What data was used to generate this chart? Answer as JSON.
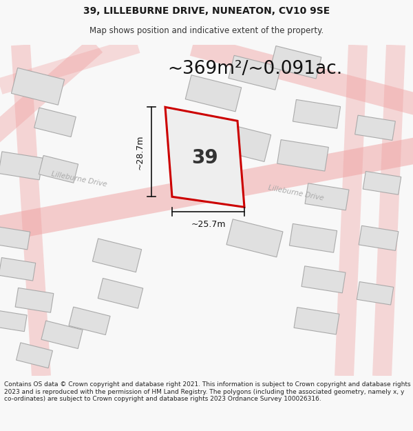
{
  "title": "39, LILLEBURNE DRIVE, NUNEATON, CV10 9SE",
  "subtitle": "Map shows position and indicative extent of the property.",
  "area_text": "~369m²/~0.091ac.",
  "number_label": "39",
  "dim_height": "~28.7m",
  "dim_width": "~25.7m",
  "footer": "Contains OS data © Crown copyright and database right 2021. This information is subject to Crown copyright and database rights 2023 and is reproduced with the permission of HM Land Registry. The polygons (including the associated geometry, namely x, y co-ordinates) are subject to Crown copyright and database rights 2023 Ordnance Survey 100026316.",
  "bg_color": "#f8f8f8",
  "map_bg": "#ffffff",
  "road_color": "#f0a0a0",
  "building_fill": "#e0e0e0",
  "building_edge": "#aaaaaa",
  "plot_fill": "#eeeeee",
  "plot_edge": "#cc0000",
  "plot_linewidth": 2.2,
  "title_fontsize": 10,
  "subtitle_fontsize": 8.5,
  "area_fontsize": 19,
  "number_fontsize": 20,
  "dim_fontsize": 9,
  "footer_fontsize": 6.5,
  "road_label_color": "#aaaaaa",
  "dim_color": "#111111"
}
